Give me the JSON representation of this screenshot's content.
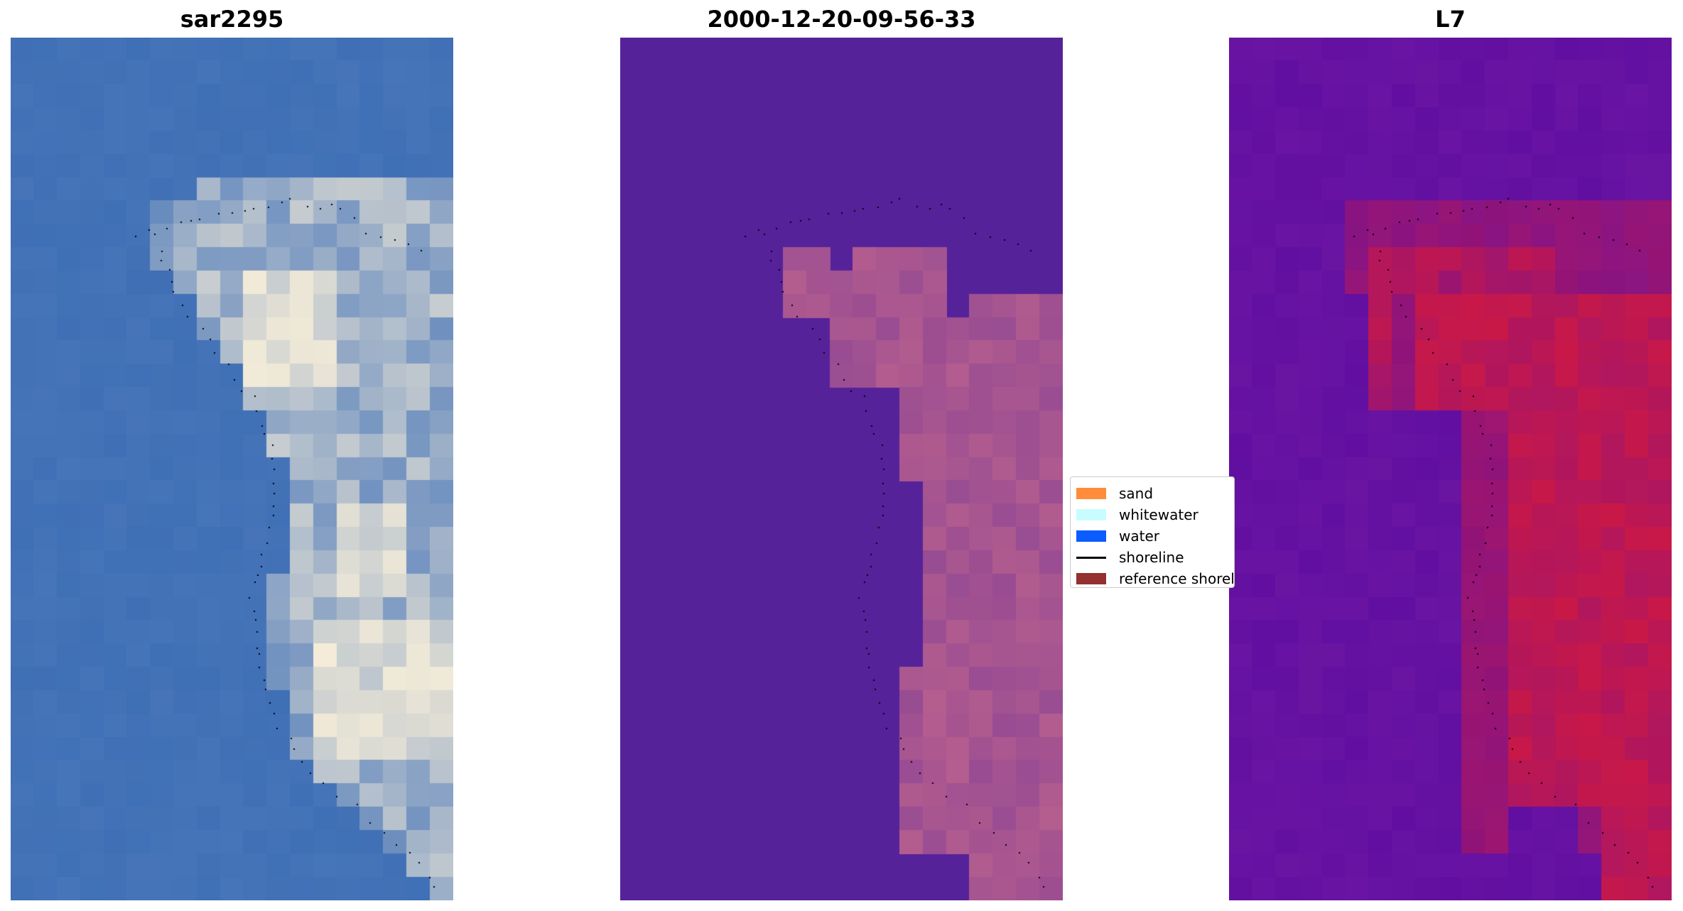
{
  "panels": [
    {
      "id": "rgb",
      "title": "sar2295"
    },
    {
      "id": "classified",
      "title": "2000-12-20-09-56-33"
    },
    {
      "id": "index",
      "title": "L7"
    }
  ],
  "legend": {
    "items": [
      {
        "label": "sand",
        "color": "#ff8c3a",
        "kind": "patch"
      },
      {
        "label": "whitewater",
        "color": "#c8fcff",
        "kind": "patch"
      },
      {
        "label": "water",
        "color": "#0a5cff",
        "kind": "patch"
      },
      {
        "label": "shoreline",
        "color": "#000000",
        "kind": "line"
      },
      {
        "label": "reference shoreline",
        "color": "#943030",
        "kind": "patch"
      }
    ]
  },
  "colors": {
    "rgb_water": "#3f6fb5",
    "rgb_bright": "#f4ecd8",
    "classified_water": "#55229a",
    "classified_land": "#b8608e",
    "index_water": "#6a14a2",
    "index_land": "#c81848",
    "shoreline_dots": "#000000"
  }
}
